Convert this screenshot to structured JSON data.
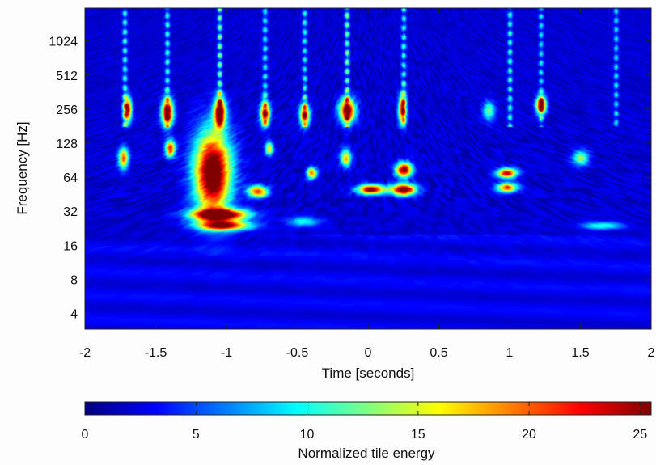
{
  "chart_data": {
    "type": "heatmap",
    "title": "",
    "xlabel": "Time [seconds]",
    "ylabel": "Frequency [Hz]",
    "x_ticks": [
      -2,
      -1.5,
      -1,
      -0.5,
      0,
      0.5,
      1,
      1.5,
      2
    ],
    "x_tick_labels": [
      "-2",
      "-1.5",
      "-1",
      "-0.5",
      "0",
      "0.5",
      "1",
      "1.5",
      "2"
    ],
    "xlim": [
      -2,
      2
    ],
    "y_scale": "log2",
    "y_ticks": [
      4,
      8,
      16,
      32,
      64,
      128,
      256,
      512,
      1024
    ],
    "y_tick_labels": [
      "4",
      "8",
      "16",
      "32",
      "64",
      "128",
      "256",
      "512",
      "1024"
    ],
    "ylim": [
      2.9,
      2000
    ],
    "colorbar": {
      "label": "Normalized tile energy",
      "range": [
        0,
        25.5
      ],
      "ticks": [
        0,
        5,
        10,
        15,
        20,
        25
      ],
      "tick_labels": [
        "0",
        "5",
        "10",
        "15",
        "20",
        "25"
      ],
      "colormap": "jet",
      "orientation": "horizontal"
    },
    "background_level": 2,
    "features": [
      {
        "kind": "blob",
        "t": -1.1,
        "f": 70,
        "dt": 0.09,
        "df": 0.85,
        "energy": 28
      },
      {
        "kind": "blob",
        "t": -1.05,
        "f": 30,
        "dt": 0.14,
        "df": 0.12,
        "energy": 26
      },
      {
        "kind": "blob",
        "t": -1.02,
        "f": 24,
        "dt": 0.13,
        "df": 0.1,
        "energy": 22
      },
      {
        "kind": "blob",
        "t": -0.78,
        "f": 48,
        "dt": 0.05,
        "df": 0.12,
        "energy": 20
      },
      {
        "kind": "blob",
        "t": -1.7,
        "f": 256,
        "dt": 0.02,
        "df": 0.25,
        "energy": 22
      },
      {
        "kind": "blob",
        "t": -1.73,
        "f": 95,
        "dt": 0.025,
        "df": 0.22,
        "energy": 18
      },
      {
        "kind": "blob",
        "t": -1.42,
        "f": 240,
        "dt": 0.03,
        "df": 0.28,
        "energy": 24
      },
      {
        "kind": "blob",
        "t": -1.4,
        "f": 115,
        "dt": 0.025,
        "df": 0.18,
        "energy": 20
      },
      {
        "kind": "blob",
        "t": -1.05,
        "f": 240,
        "dt": 0.03,
        "df": 0.3,
        "energy": 24
      },
      {
        "kind": "blob",
        "t": -0.73,
        "f": 235,
        "dt": 0.025,
        "df": 0.25,
        "energy": 20
      },
      {
        "kind": "blob",
        "t": -0.7,
        "f": 115,
        "dt": 0.02,
        "df": 0.15,
        "energy": 14
      },
      {
        "kind": "blob",
        "t": -0.45,
        "f": 230,
        "dt": 0.025,
        "df": 0.22,
        "energy": 20
      },
      {
        "kind": "blob",
        "t": -0.4,
        "f": 70,
        "dt": 0.025,
        "df": 0.12,
        "energy": 18
      },
      {
        "kind": "blob",
        "t": -0.15,
        "f": 250,
        "dt": 0.04,
        "df": 0.25,
        "energy": 24
      },
      {
        "kind": "blob",
        "t": -0.16,
        "f": 95,
        "dt": 0.025,
        "df": 0.18,
        "energy": 16
      },
      {
        "kind": "blob",
        "t": 0.02,
        "f": 50,
        "dt": 0.07,
        "df": 0.1,
        "energy": 24
      },
      {
        "kind": "blob",
        "t": 0.25,
        "f": 50,
        "dt": 0.06,
        "df": 0.12,
        "energy": 26
      },
      {
        "kind": "blob",
        "t": 0.25,
        "f": 75,
        "dt": 0.04,
        "df": 0.15,
        "energy": 24
      },
      {
        "kind": "blob",
        "t": 0.24,
        "f": 256,
        "dt": 0.02,
        "df": 0.3,
        "energy": 20
      },
      {
        "kind": "blob",
        "t": 0.98,
        "f": 70,
        "dt": 0.05,
        "df": 0.1,
        "energy": 22
      },
      {
        "kind": "blob",
        "t": 0.98,
        "f": 52,
        "dt": 0.05,
        "df": 0.1,
        "energy": 20
      },
      {
        "kind": "blob",
        "t": 1.22,
        "f": 280,
        "dt": 0.025,
        "df": 0.18,
        "energy": 24
      },
      {
        "kind": "blob",
        "t": 1.5,
        "f": 95,
        "dt": 0.04,
        "df": 0.15,
        "energy": 12
      },
      {
        "kind": "blob",
        "t": 0.85,
        "f": 250,
        "dt": 0.03,
        "df": 0.2,
        "energy": 10
      },
      {
        "kind": "blob",
        "t": 1.65,
        "f": 24,
        "dt": 0.1,
        "df": 0.08,
        "energy": 9
      },
      {
        "kind": "blob",
        "t": -0.45,
        "f": 26,
        "dt": 0.08,
        "df": 0.1,
        "energy": 8
      },
      {
        "kind": "streak",
        "t": -1.72,
        "energy": 10
      },
      {
        "kind": "streak",
        "t": -1.42,
        "energy": 10
      },
      {
        "kind": "streak",
        "t": -1.05,
        "energy": 12
      },
      {
        "kind": "streak",
        "t": -0.73,
        "energy": 9
      },
      {
        "kind": "streak",
        "t": -0.45,
        "energy": 9
      },
      {
        "kind": "streak",
        "t": -0.15,
        "energy": 12
      },
      {
        "kind": "streak",
        "t": 0.25,
        "energy": 10
      },
      {
        "kind": "streak",
        "t": 1.0,
        "energy": 10
      },
      {
        "kind": "streak",
        "t": 1.22,
        "energy": 8
      },
      {
        "kind": "streak",
        "t": 1.75,
        "energy": 8
      }
    ]
  }
}
